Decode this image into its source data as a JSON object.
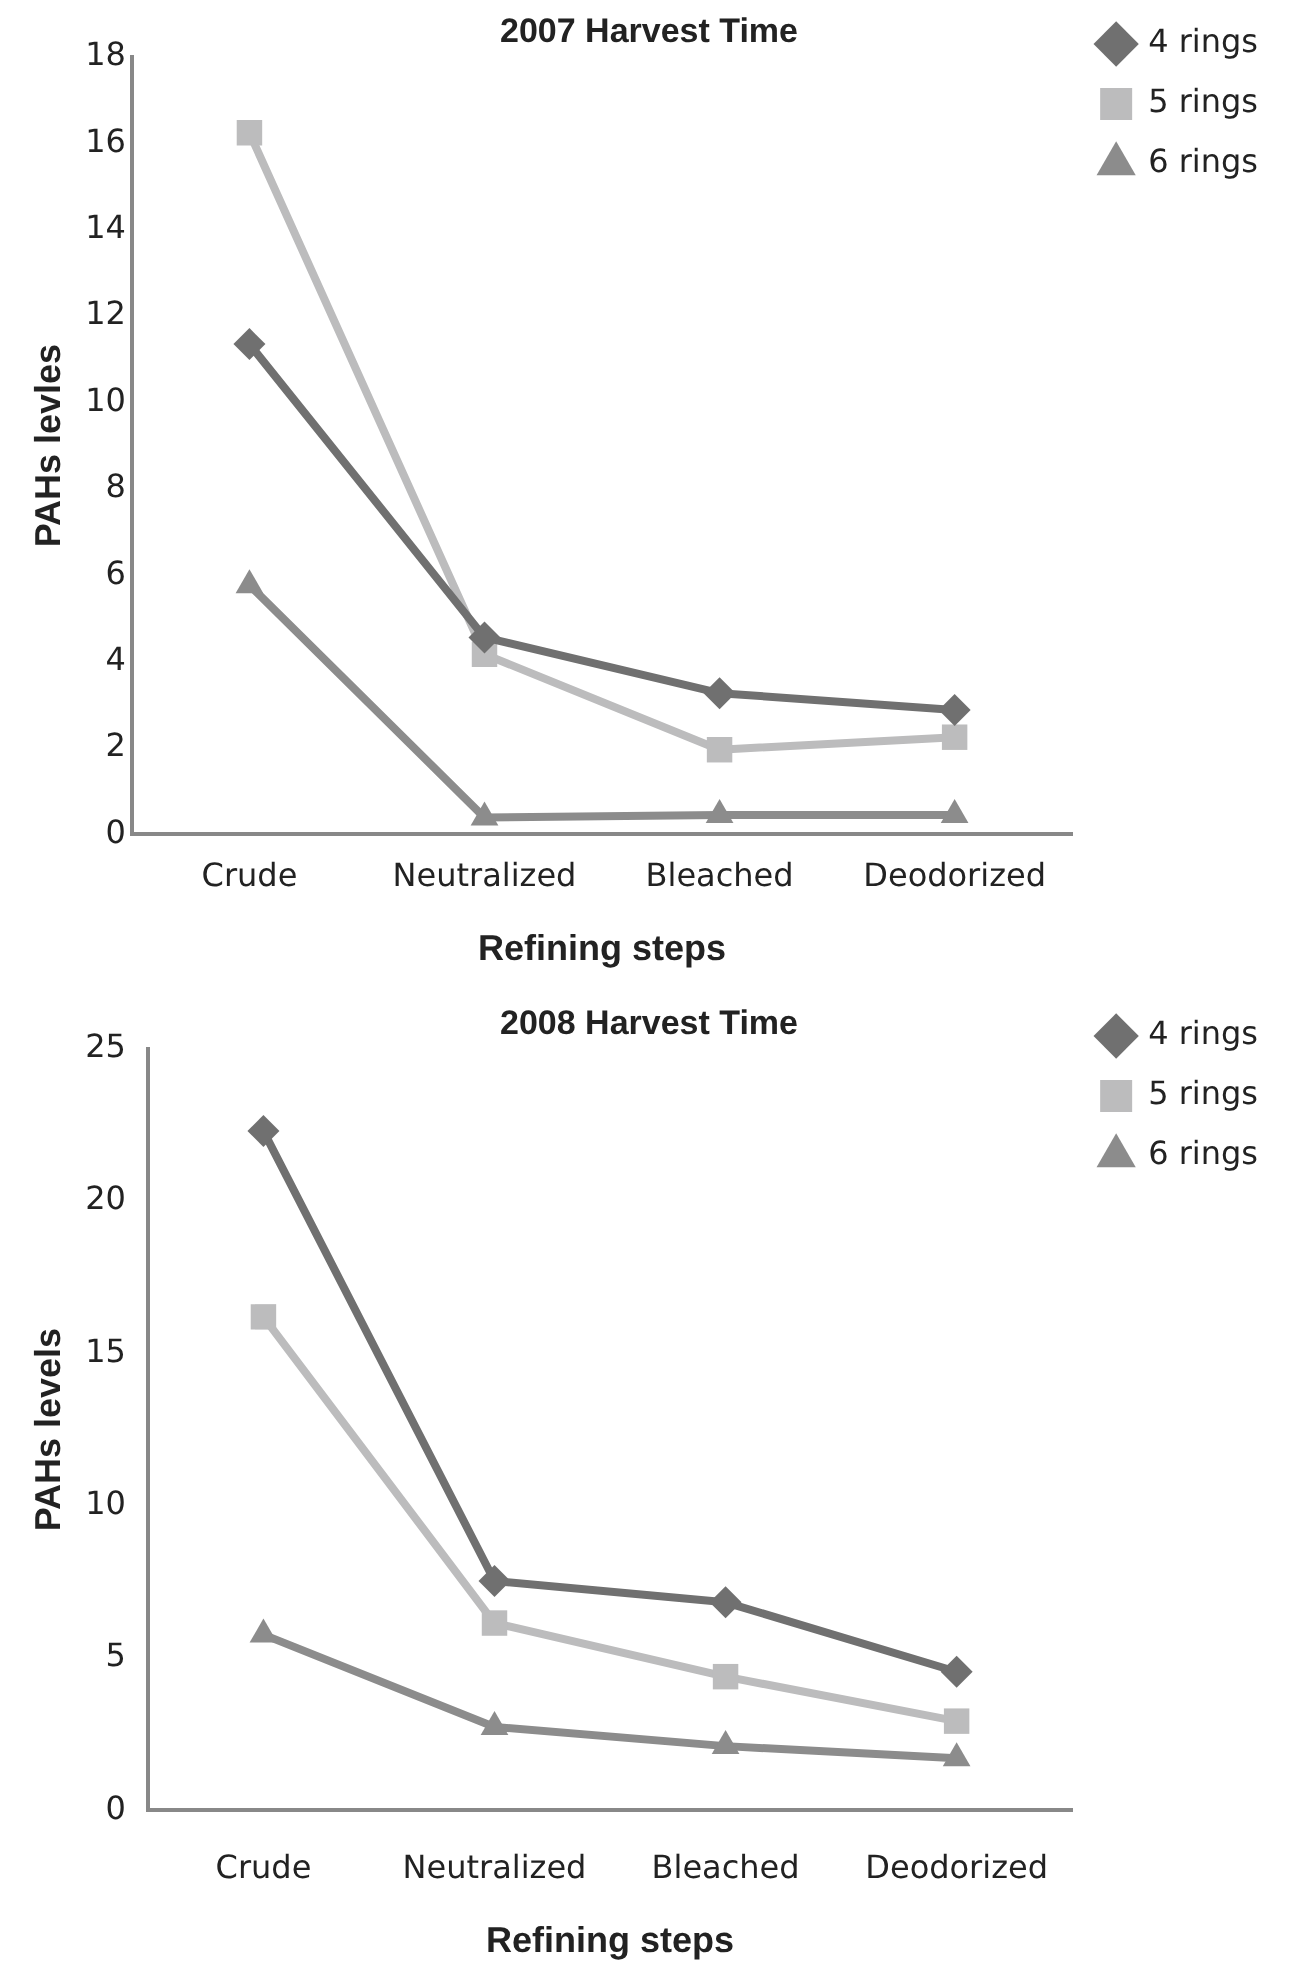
{
  "chart_data": [
    {
      "type": "line",
      "title": "2007 Harvest Time",
      "xlabel": "Refining steps",
      "ylabel": "PAHs levles",
      "categories": [
        "Crude",
        "Neutralized",
        "Bleached",
        "Deodorized"
      ],
      "series": [
        {
          "name": "4 rings",
          "color": "#707070",
          "marker": "diamond",
          "values": [
            11.35,
            4.56,
            3.27,
            2.88
          ]
        },
        {
          "name": "5 rings",
          "color": "#bcbcbd",
          "marker": "square",
          "values": [
            16.24,
            4.17,
            1.96,
            2.25
          ]
        },
        {
          "name": "6 rings",
          "color": "#8c8c8c",
          "marker": "triangle",
          "values": [
            5.77,
            0.39,
            0.45,
            0.45
          ]
        }
      ],
      "ylim": [
        0,
        18
      ],
      "yticks": [
        0,
        2,
        4,
        6,
        8,
        10,
        12,
        14,
        16,
        18
      ],
      "grid": false,
      "legend": "top right"
    },
    {
      "type": "line",
      "title": "2008 Harvest Time",
      "xlabel": "Refining steps",
      "ylabel": "PAHs levels",
      "categories": [
        "Crude",
        "Neutralized",
        "Bleached",
        "Deodorized"
      ],
      "series": [
        {
          "name": "4 rings",
          "color": "#707070",
          "marker": "diamond",
          "values": [
            22.3,
            7.53,
            6.83,
            4.55
          ]
        },
        {
          "name": "5 rings",
          "color": "#bcbcbd",
          "marker": "square",
          "values": [
            16.2,
            6.15,
            4.39,
            2.93
          ]
        },
        {
          "name": "6 rings",
          "color": "#8c8c8c",
          "marker": "triangle",
          "values": [
            5.77,
            2.74,
            2.11,
            1.71
          ]
        }
      ],
      "ylim": [
        0,
        25
      ],
      "yticks": [
        0,
        5,
        10,
        15,
        20,
        25
      ],
      "grid": false,
      "legend": "top right"
    }
  ]
}
